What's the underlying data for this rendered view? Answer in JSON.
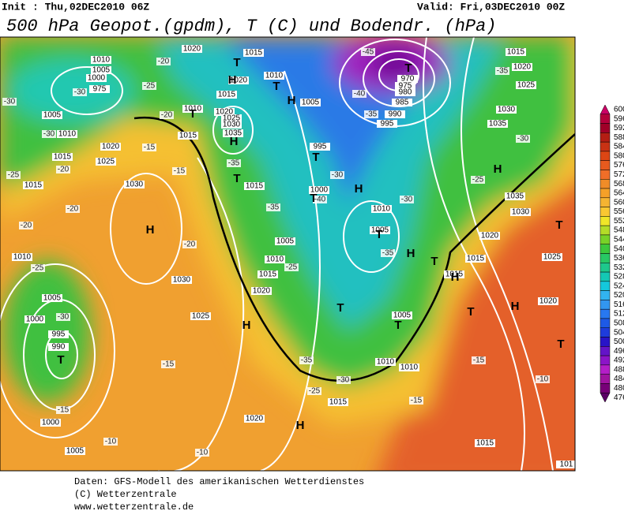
{
  "header": {
    "init": "Init : Thu,02DEC2010 06Z",
    "valid": "Valid: Fri,03DEC2010 00Z",
    "title": "500 hPa Geopot.(gpdm), T (C) und Bodendr. (hPa)"
  },
  "map": {
    "isobar_labels": [
      "1010",
      "1005",
      "1000",
      "975",
      "1020",
      "1015",
      "1010",
      "1020",
      "1015",
      "1005",
      "1010",
      "1020",
      "1025",
      "1030",
      "1035",
      "1015",
      "1005",
      "1010",
      "1015",
      "1020",
      "1025",
      "1030",
      "1015",
      "995",
      "1000",
      "1015",
      "1005",
      "1010",
      "1015",
      "1020",
      "1030",
      "1025",
      "1010",
      "1005",
      "1000",
      "995",
      "990",
      "1000",
      "1005",
      "1020",
      "1015",
      "1010",
      "1010",
      "1005",
      "1010",
      "1005",
      "970",
      "975",
      "980",
      "985",
      "990",
      "995",
      "1015",
      "1020",
      "1025",
      "1030",
      "1035",
      "1035",
      "1030",
      "1020",
      "1025",
      "1015",
      "1015",
      "1020",
      "1015",
      "101"
    ],
    "temperature_labels": [
      "-30",
      "-30",
      "-25",
      "-20",
      "-20",
      "-30",
      "-25",
      "-20",
      "-15",
      "-15",
      "-20",
      "-20",
      "-20",
      "-25",
      "-35",
      "-35",
      "-30",
      "-40",
      "-45",
      "-40",
      "-35",
      "-35",
      "-30",
      "-25",
      "-35",
      "-30",
      "-25",
      "-30",
      "-15",
      "-15",
      "-10",
      "-10",
      "-35",
      "-30",
      "-25",
      "-15",
      "-15",
      "-10"
    ],
    "pressure_centers": [
      "T",
      "H",
      "T",
      "H",
      "T",
      "H",
      "T",
      "T",
      "T",
      "H",
      "T",
      "H",
      "T",
      "H",
      "H",
      "T",
      "T",
      "T",
      "H",
      "H",
      "T",
      "H",
      "H",
      "T",
      "T",
      "T"
    ]
  },
  "legend": {
    "items": [
      {
        "value": 600,
        "color": "#cc0066"
      },
      {
        "value": 596,
        "color": "#b4003c"
      },
      {
        "value": 592,
        "color": "#a00028"
      },
      {
        "value": 588,
        "color": "#b41e14"
      },
      {
        "value": 584,
        "color": "#c83214"
      },
      {
        "value": 580,
        "color": "#dc4614"
      },
      {
        "value": 576,
        "color": "#e65a1e"
      },
      {
        "value": 572,
        "color": "#f06e28"
      },
      {
        "value": 568,
        "color": "#f08c28"
      },
      {
        "value": 564,
        "color": "#f5a028"
      },
      {
        "value": 560,
        "color": "#f5b432"
      },
      {
        "value": 556,
        "color": "#fac832"
      },
      {
        "value": 552,
        "color": "#f0e628"
      },
      {
        "value": 548,
        "color": "#b4dc28"
      },
      {
        "value": 544,
        "color": "#78d228"
      },
      {
        "value": 540,
        "color": "#3cc83c"
      },
      {
        "value": 536,
        "color": "#28c864"
      },
      {
        "value": 532,
        "color": "#1ec88c"
      },
      {
        "value": 528,
        "color": "#14c8b4"
      },
      {
        "value": 524,
        "color": "#14c8dc"
      },
      {
        "value": 520,
        "color": "#32b4f0"
      },
      {
        "value": 516,
        "color": "#3296f0"
      },
      {
        "value": 512,
        "color": "#2878f0"
      },
      {
        "value": 508,
        "color": "#1e5ae6"
      },
      {
        "value": 504,
        "color": "#1e3cdc"
      },
      {
        "value": 500,
        "color": "#2814c8"
      },
      {
        "value": 496,
        "color": "#6414c8"
      },
      {
        "value": 492,
        "color": "#8c14c8"
      },
      {
        "value": 488,
        "color": "#b41ec8"
      },
      {
        "value": 484,
        "color": "#a014a0"
      },
      {
        "value": 480,
        "color": "#780078"
      },
      {
        "value": 476,
        "color": "#5a0064"
      }
    ]
  },
  "footer": {
    "source": "Daten: GFS-Modell des amerikanischen Wetterdienstes",
    "copyright": "(C) Wetterzentrale",
    "url": "www.wetterzentrale.de"
  }
}
